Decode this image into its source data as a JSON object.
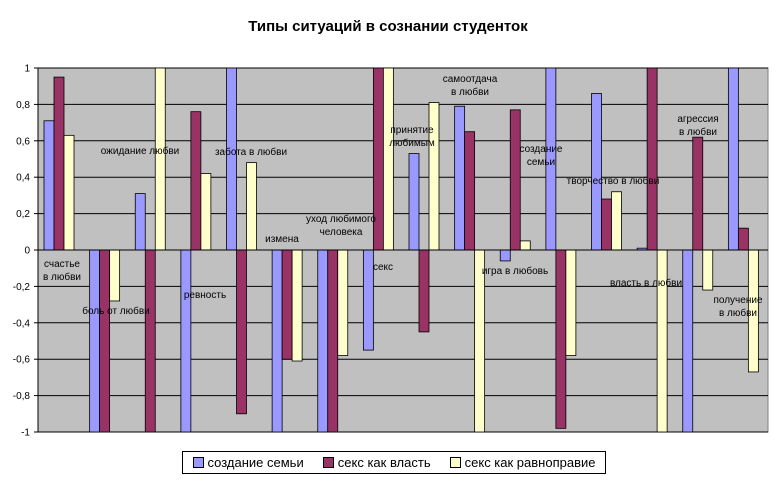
{
  "chart_data": {
    "type": "bar",
    "title": "Типы ситуаций в сознании студенток",
    "xlabel": "",
    "ylabel": "",
    "ylim": [
      -1,
      1
    ],
    "yticks": [
      "1",
      "0,8",
      "0,6",
      "0,4",
      "0,2",
      "0",
      "-0,2",
      "-0,4",
      "-0,6",
      "-0,8",
      "-1"
    ],
    "ytick_values": [
      1,
      0.8,
      0.6,
      0.4,
      0.2,
      0,
      -0.2,
      -0.4,
      -0.6,
      -0.8,
      -1
    ],
    "grid": true,
    "legend_position": "bottom",
    "plot_background": "#c0c0c0",
    "categories": [
      "счастье в любви",
      "боль от любви",
      "ожидание любви",
      "ревность",
      "забота в любви",
      "измена",
      "уход любимого человека",
      "секс",
      "принятие любимым",
      "самоотдача в любви",
      "игра в любовь",
      "создание семьи",
      "творчество в любви",
      "власть в любви",
      "агрессия в любви",
      "получение в любви"
    ],
    "category_labels": [
      [
        "счастье",
        "в любви"
      ],
      [
        "боль от любви"
      ],
      [
        "ожидание любви"
      ],
      [
        "ревность"
      ],
      [
        "забота в любви"
      ],
      [
        "измена"
      ],
      [
        "уход любимого",
        "человека"
      ],
      [
        "секс"
      ],
      [
        "принятие",
        "любимым"
      ],
      [
        "самоотдача",
        "в любви"
      ],
      [
        "игра в любовь"
      ],
      [
        "создание",
        "семьи"
      ],
      [
        "творчество в любви"
      ],
      [
        "власть в любви"
      ],
      [
        "агрессия",
        "в любви"
      ],
      [
        "получение",
        "в любви"
      ]
    ],
    "series": [
      {
        "name": "создание семьи",
        "color": "#9999ff",
        "values": [
          0.71,
          -1,
          0.31,
          -1,
          1,
          -1,
          -1,
          -0.55,
          0.53,
          0.79,
          -0.06,
          1,
          0.86,
          0.01,
          -1,
          1
        ]
      },
      {
        "name": "секс как власть",
        "color": "#993366",
        "values": [
          0.95,
          -1,
          -1,
          0.76,
          -0.9,
          -0.6,
          -1,
          1,
          -0.45,
          0.65,
          0.77,
          -0.98,
          0.28,
          1,
          0.62,
          0.12
        ]
      },
      {
        "name": "секс как равноправие",
        "color": "#ffffcc",
        "values": [
          0.63,
          -0.28,
          1,
          0.42,
          0.48,
          -0.61,
          -0.58,
          1,
          0.81,
          -1,
          0.05,
          -0.58,
          0.32,
          -1,
          -0.22,
          -0.67
        ]
      }
    ]
  }
}
